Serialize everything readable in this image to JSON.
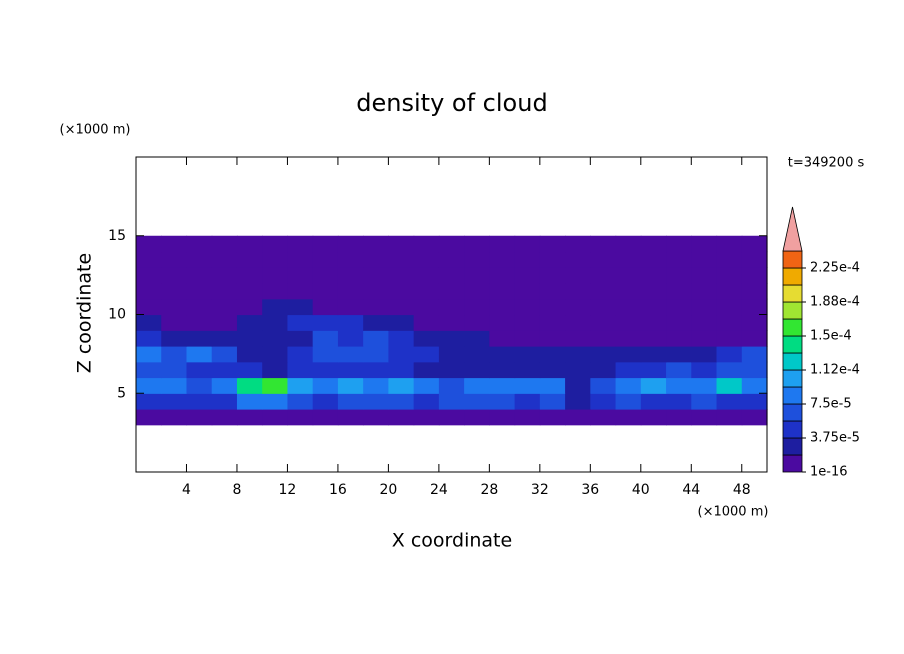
{
  "chart_data": {
    "type": "contour",
    "title": "density of cloud",
    "x_label": "X coordinate",
    "y_label": "Z coordinate",
    "x_unit": "(×1000 m)",
    "y_unit": "(×1000 m)",
    "time_label": "t=349200 s",
    "xlim": [
      0,
      50
    ],
    "ylim": [
      0,
      20
    ],
    "xticks": [
      4,
      8,
      12,
      16,
      20,
      24,
      28,
      32,
      36,
      40,
      44,
      48
    ],
    "yticks": [
      5,
      10,
      15
    ],
    "x": [
      1,
      3,
      5,
      7,
      9,
      11,
      13,
      15,
      17,
      19,
      21,
      23,
      25,
      27,
      29,
      31,
      33,
      35,
      37,
      39,
      41,
      43,
      45,
      47,
      49
    ],
    "z": [
      3.5,
      4.5,
      5.5,
      6.5,
      7.5,
      8.5,
      9.5,
      10.5,
      11.5,
      12.5,
      13.5,
      14.5
    ],
    "values": [
      [
        1e-05,
        1e-05,
        1e-05,
        1e-05,
        1e-05,
        1e-05,
        1e-05,
        1e-05,
        1e-05,
        1e-05,
        1e-05,
        1e-05,
        1e-05,
        1e-05,
        1e-05,
        1e-05,
        1e-05,
        1e-05,
        1e-05,
        1e-05,
        1e-05,
        1e-05,
        1e-05,
        1e-05,
        1e-05
      ],
      [
        4e-05,
        5e-05,
        4e-05,
        5e-05,
        8e-05,
        8e-05,
        6e-05,
        5e-05,
        6e-05,
        7e-05,
        6e-05,
        5e-05,
        6e-05,
        7e-05,
        6e-05,
        5e-05,
        6e-05,
        2e-05,
        4e-05,
        6e-05,
        5e-05,
        5e-05,
        6e-05,
        5e-05,
        4e-05
      ],
      [
        8e-05,
        9e-05,
        7e-05,
        9e-05,
        0.00014,
        0.00015,
        0.00011,
        9e-05,
        0.0001,
        9e-05,
        0.0001,
        8e-05,
        7e-05,
        9e-05,
        8e-05,
        9e-05,
        8e-05,
        3e-05,
        7e-05,
        9e-05,
        0.0001,
        8e-05,
        9e-05,
        0.00012,
        9e-05
      ],
      [
        6e-05,
        7e-05,
        5e-05,
        4e-05,
        4e-05,
        3e-05,
        4e-05,
        5e-05,
        4e-05,
        5e-05,
        5e-05,
        3e-05,
        2e-05,
        2e-05,
        2e-05,
        2e-05,
        2e-05,
        2e-05,
        3e-05,
        4e-05,
        5e-05,
        6e-05,
        5e-05,
        6e-05,
        7e-05
      ],
      [
        8e-05,
        7e-05,
        8e-05,
        6e-05,
        3e-05,
        3e-05,
        4e-05,
        6e-05,
        7e-05,
        6e-05,
        5e-05,
        4e-05,
        2e-05,
        2e-05,
        2e-05,
        2e-05,
        2e-05,
        2e-05,
        2e-05,
        2e-05,
        2e-05,
        2e-05,
        3e-05,
        5e-05,
        6e-05
      ],
      [
        4e-05,
        3e-05,
        2e-05,
        2e-05,
        2e-05,
        3e-05,
        3e-05,
        6e-05,
        5e-05,
        6e-05,
        4e-05,
        3e-05,
        2e-05,
        2e-05,
        1e-05,
        1e-05,
        1e-05,
        1e-05,
        1e-05,
        1e-05,
        1e-05,
        1e-05,
        1e-05,
        1e-05,
        1e-05
      ],
      [
        2e-05,
        1e-05,
        1e-05,
        1e-05,
        3e-05,
        3e-05,
        4e-05,
        4e-05,
        4e-05,
        3e-05,
        2e-05,
        1e-05,
        1e-05,
        1e-05,
        1e-05,
        1e-05,
        1e-05,
        1e-05,
        1e-05,
        1e-05,
        1e-05,
        1e-05,
        1e-05,
        1e-05,
        1e-05
      ],
      [
        1e-05,
        1e-05,
        1e-05,
        1e-05,
        1e-05,
        3e-05,
        2e-05,
        1e-05,
        1e-05,
        1e-05,
        1e-05,
        1e-05,
        1e-05,
        1e-05,
        1e-05,
        1e-05,
        1e-05,
        1e-05,
        1e-05,
        1e-05,
        1e-05,
        1e-05,
        1e-05,
        1e-05,
        1e-05
      ],
      [
        1e-05,
        1e-05,
        1e-05,
        1e-05,
        1e-05,
        1e-05,
        1e-05,
        1e-05,
        1e-05,
        1e-05,
        1e-05,
        1e-05,
        1e-05,
        1e-05,
        1e-05,
        1e-05,
        1e-05,
        1e-05,
        1e-05,
        1e-05,
        1e-05,
        1e-05,
        1e-05,
        1e-05,
        1e-05
      ],
      [
        1e-05,
        1e-05,
        1e-05,
        1e-05,
        1e-05,
        1e-05,
        1e-05,
        1e-05,
        1e-05,
        1e-05,
        1e-05,
        1e-05,
        1e-05,
        1e-05,
        1e-05,
        1e-05,
        1e-05,
        1e-05,
        1e-05,
        1e-05,
        1e-05,
        1e-05,
        1e-05,
        1e-05,
        1e-05
      ],
      [
        1e-05,
        1e-05,
        1e-05,
        1e-05,
        1e-05,
        1e-05,
        1e-05,
        1e-05,
        1e-05,
        1e-05,
        1e-05,
        1e-05,
        1e-05,
        1e-05,
        1e-05,
        1e-05,
        1e-05,
        1e-05,
        1e-05,
        1e-05,
        1e-05,
        1e-05,
        1e-05,
        1e-05,
        1e-05
      ],
      [
        1e-05,
        1e-05,
        1e-05,
        1e-05,
        1e-05,
        1e-05,
        1e-05,
        1e-05,
        1e-05,
        1e-05,
        1e-05,
        1e-05,
        1e-05,
        1e-05,
        1e-05,
        1e-05,
        1e-05,
        1e-05,
        1e-05,
        1e-05,
        1e-05,
        1e-05,
        1e-05,
        1e-05,
        1e-05
      ]
    ],
    "levels": [
      1e-16,
      1.875e-05,
      3.75e-05,
      5.625e-05,
      7.5e-05,
      9.375e-05,
      0.0001125,
      0.00013125,
      0.00015,
      0.00016875,
      0.0001875,
      0.00020625,
      0.000225
    ],
    "colors": [
      "#4b0aa0",
      "#1e1ea0",
      "#1e32c8",
      "#1e50dc",
      "#1e78f0",
      "#1ea0f0",
      "#00c8c8",
      "#00dc82",
      "#32e632",
      "#a0e632",
      "#e6dc32",
      "#f0aa00",
      "#f06414"
    ],
    "over_color": "#f0a0a0",
    "colorbar_ticks": [
      {
        "value": 1e-16,
        "label": "1e-16"
      },
      {
        "value": 3.75e-05,
        "label": "3.75e-5"
      },
      {
        "value": 7.5e-05,
        "label": "7.5e-5"
      },
      {
        "value": 0.0001125,
        "label": "1.12e-4"
      },
      {
        "value": 0.00015,
        "label": "1.5e-4"
      },
      {
        "value": 0.0001875,
        "label": "1.88e-4"
      },
      {
        "value": 0.000225,
        "label": "2.25e-4"
      }
    ]
  }
}
